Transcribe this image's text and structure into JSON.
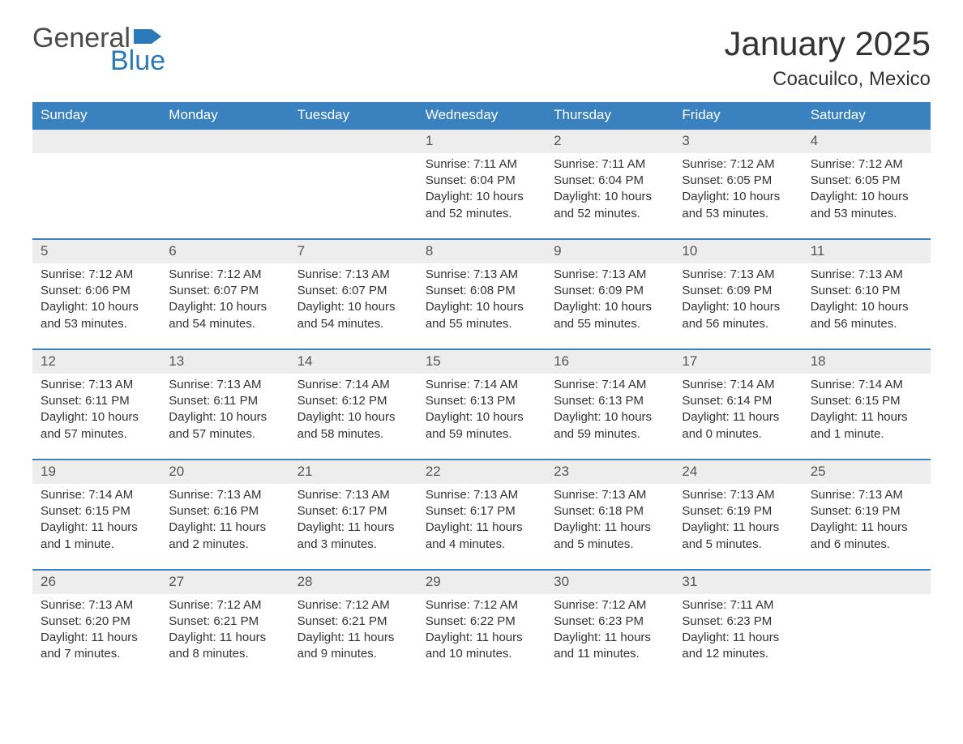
{
  "logo": {
    "text1": "General",
    "text2": "Blue",
    "flag_color": "#2a7ab9"
  },
  "title": "January 2025",
  "location": "Coacuilco, Mexico",
  "colors": {
    "header_bg": "#3a81c0",
    "header_text": "#ffffff",
    "daynum_bg": "#ededed",
    "border": "#3a81c0",
    "body_text": "#333333",
    "logo_gray": "#4a4a4a",
    "logo_blue": "#2a7ab9"
  },
  "weekdays": [
    "Sunday",
    "Monday",
    "Tuesday",
    "Wednesday",
    "Thursday",
    "Friday",
    "Saturday"
  ],
  "weeks": [
    [
      null,
      null,
      null,
      {
        "d": "1",
        "sr": "Sunrise: 7:11 AM",
        "ss": "Sunset: 6:04 PM",
        "dl1": "Daylight: 10 hours",
        "dl2": "and 52 minutes."
      },
      {
        "d": "2",
        "sr": "Sunrise: 7:11 AM",
        "ss": "Sunset: 6:04 PM",
        "dl1": "Daylight: 10 hours",
        "dl2": "and 52 minutes."
      },
      {
        "d": "3",
        "sr": "Sunrise: 7:12 AM",
        "ss": "Sunset: 6:05 PM",
        "dl1": "Daylight: 10 hours",
        "dl2": "and 53 minutes."
      },
      {
        "d": "4",
        "sr": "Sunrise: 7:12 AM",
        "ss": "Sunset: 6:05 PM",
        "dl1": "Daylight: 10 hours",
        "dl2": "and 53 minutes."
      }
    ],
    [
      {
        "d": "5",
        "sr": "Sunrise: 7:12 AM",
        "ss": "Sunset: 6:06 PM",
        "dl1": "Daylight: 10 hours",
        "dl2": "and 53 minutes."
      },
      {
        "d": "6",
        "sr": "Sunrise: 7:12 AM",
        "ss": "Sunset: 6:07 PM",
        "dl1": "Daylight: 10 hours",
        "dl2": "and 54 minutes."
      },
      {
        "d": "7",
        "sr": "Sunrise: 7:13 AM",
        "ss": "Sunset: 6:07 PM",
        "dl1": "Daylight: 10 hours",
        "dl2": "and 54 minutes."
      },
      {
        "d": "8",
        "sr": "Sunrise: 7:13 AM",
        "ss": "Sunset: 6:08 PM",
        "dl1": "Daylight: 10 hours",
        "dl2": "and 55 minutes."
      },
      {
        "d": "9",
        "sr": "Sunrise: 7:13 AM",
        "ss": "Sunset: 6:09 PM",
        "dl1": "Daylight: 10 hours",
        "dl2": "and 55 minutes."
      },
      {
        "d": "10",
        "sr": "Sunrise: 7:13 AM",
        "ss": "Sunset: 6:09 PM",
        "dl1": "Daylight: 10 hours",
        "dl2": "and 56 minutes."
      },
      {
        "d": "11",
        "sr": "Sunrise: 7:13 AM",
        "ss": "Sunset: 6:10 PM",
        "dl1": "Daylight: 10 hours",
        "dl2": "and 56 minutes."
      }
    ],
    [
      {
        "d": "12",
        "sr": "Sunrise: 7:13 AM",
        "ss": "Sunset: 6:11 PM",
        "dl1": "Daylight: 10 hours",
        "dl2": "and 57 minutes."
      },
      {
        "d": "13",
        "sr": "Sunrise: 7:13 AM",
        "ss": "Sunset: 6:11 PM",
        "dl1": "Daylight: 10 hours",
        "dl2": "and 57 minutes."
      },
      {
        "d": "14",
        "sr": "Sunrise: 7:14 AM",
        "ss": "Sunset: 6:12 PM",
        "dl1": "Daylight: 10 hours",
        "dl2": "and 58 minutes."
      },
      {
        "d": "15",
        "sr": "Sunrise: 7:14 AM",
        "ss": "Sunset: 6:13 PM",
        "dl1": "Daylight: 10 hours",
        "dl2": "and 59 minutes."
      },
      {
        "d": "16",
        "sr": "Sunrise: 7:14 AM",
        "ss": "Sunset: 6:13 PM",
        "dl1": "Daylight: 10 hours",
        "dl2": "and 59 minutes."
      },
      {
        "d": "17",
        "sr": "Sunrise: 7:14 AM",
        "ss": "Sunset: 6:14 PM",
        "dl1": "Daylight: 11 hours",
        "dl2": "and 0 minutes."
      },
      {
        "d": "18",
        "sr": "Sunrise: 7:14 AM",
        "ss": "Sunset: 6:15 PM",
        "dl1": "Daylight: 11 hours",
        "dl2": "and 1 minute."
      }
    ],
    [
      {
        "d": "19",
        "sr": "Sunrise: 7:14 AM",
        "ss": "Sunset: 6:15 PM",
        "dl1": "Daylight: 11 hours",
        "dl2": "and 1 minute."
      },
      {
        "d": "20",
        "sr": "Sunrise: 7:13 AM",
        "ss": "Sunset: 6:16 PM",
        "dl1": "Daylight: 11 hours",
        "dl2": "and 2 minutes."
      },
      {
        "d": "21",
        "sr": "Sunrise: 7:13 AM",
        "ss": "Sunset: 6:17 PM",
        "dl1": "Daylight: 11 hours",
        "dl2": "and 3 minutes."
      },
      {
        "d": "22",
        "sr": "Sunrise: 7:13 AM",
        "ss": "Sunset: 6:17 PM",
        "dl1": "Daylight: 11 hours",
        "dl2": "and 4 minutes."
      },
      {
        "d": "23",
        "sr": "Sunrise: 7:13 AM",
        "ss": "Sunset: 6:18 PM",
        "dl1": "Daylight: 11 hours",
        "dl2": "and 5 minutes."
      },
      {
        "d": "24",
        "sr": "Sunrise: 7:13 AM",
        "ss": "Sunset: 6:19 PM",
        "dl1": "Daylight: 11 hours",
        "dl2": "and 5 minutes."
      },
      {
        "d": "25",
        "sr": "Sunrise: 7:13 AM",
        "ss": "Sunset: 6:19 PM",
        "dl1": "Daylight: 11 hours",
        "dl2": "and 6 minutes."
      }
    ],
    [
      {
        "d": "26",
        "sr": "Sunrise: 7:13 AM",
        "ss": "Sunset: 6:20 PM",
        "dl1": "Daylight: 11 hours",
        "dl2": "and 7 minutes."
      },
      {
        "d": "27",
        "sr": "Sunrise: 7:12 AM",
        "ss": "Sunset: 6:21 PM",
        "dl1": "Daylight: 11 hours",
        "dl2": "and 8 minutes."
      },
      {
        "d": "28",
        "sr": "Sunrise: 7:12 AM",
        "ss": "Sunset: 6:21 PM",
        "dl1": "Daylight: 11 hours",
        "dl2": "and 9 minutes."
      },
      {
        "d": "29",
        "sr": "Sunrise: 7:12 AM",
        "ss": "Sunset: 6:22 PM",
        "dl1": "Daylight: 11 hours",
        "dl2": "and 10 minutes."
      },
      {
        "d": "30",
        "sr": "Sunrise: 7:12 AM",
        "ss": "Sunset: 6:23 PM",
        "dl1": "Daylight: 11 hours",
        "dl2": "and 11 minutes."
      },
      {
        "d": "31",
        "sr": "Sunrise: 7:11 AM",
        "ss": "Sunset: 6:23 PM",
        "dl1": "Daylight: 11 hours",
        "dl2": "and 12 minutes."
      },
      null
    ]
  ]
}
